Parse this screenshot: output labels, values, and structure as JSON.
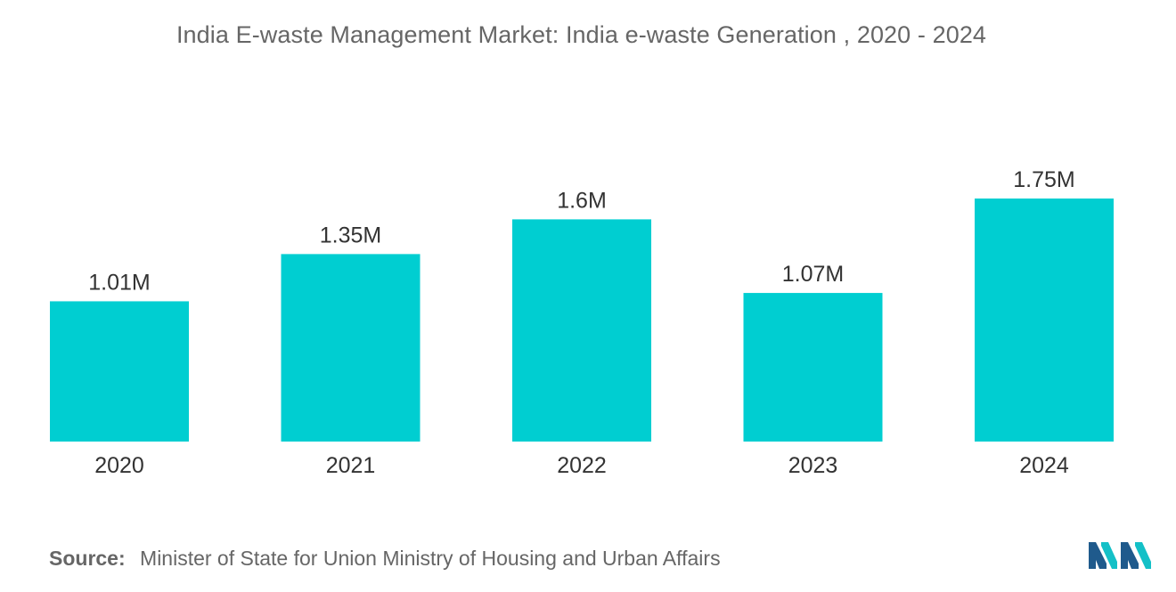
{
  "chart_data": {
    "type": "bar",
    "title": "India E-waste Management Market: India e-waste Generation , 2020 - 2024",
    "categories": [
      "2020",
      "2021",
      "2022",
      "2023",
      "2024"
    ],
    "values": [
      1.01,
      1.35,
      1.6,
      1.07,
      1.75
    ],
    "value_labels": [
      "1.01M",
      "1.35M",
      "1.6M",
      "1.07M",
      "1.75M"
    ],
    "unit": "M",
    "bar_color": "#00CED1",
    "xlabel": "",
    "ylabel": "",
    "grid": false,
    "legend": "none"
  },
  "source": {
    "label": "Source:",
    "text": "Minister of State for Union Ministry of Housing and Urban Affairs"
  },
  "colors": {
    "text": "#666666",
    "label_text": "#333333",
    "logo_dark": "#1F5A8C",
    "logo_light": "#14C0C7"
  }
}
